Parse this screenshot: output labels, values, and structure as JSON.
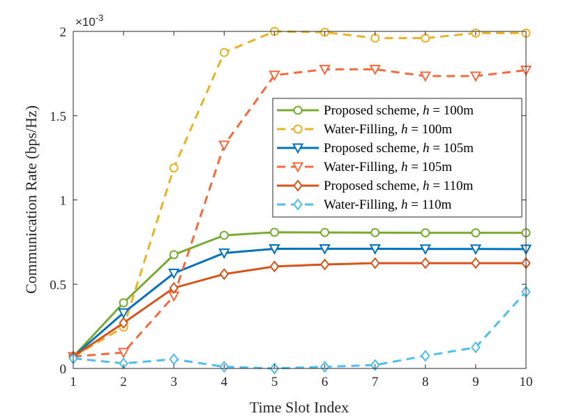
{
  "chart_data": {
    "type": "line",
    "title": "",
    "xlabel": "Time Slot Index",
    "ylabel": "Communication Rate (bps/Hz)",
    "x": [
      1,
      2,
      3,
      4,
      5,
      6,
      7,
      8,
      9,
      10
    ],
    "xlim": [
      1,
      10
    ],
    "ylim": [
      0,
      2
    ],
    "xticks": [
      "1",
      "2",
      "3",
      "4",
      "5",
      "6",
      "7",
      "8",
      "9",
      "10"
    ],
    "yticks": [
      {
        "value": 0,
        "label": "0"
      },
      {
        "value": 0.5,
        "label": "0.5"
      },
      {
        "value": 1,
        "label": "1"
      },
      {
        "value": 1.5,
        "label": "1.5"
      },
      {
        "value": 2,
        "label": "2"
      }
    ],
    "y_multiplier": {
      "base": "×10",
      "exponent": "-3"
    },
    "grid": false,
    "legend_position": "right",
    "series": [
      {
        "legend_prefix": "Proposed scheme, ",
        "legend_var": "h",
        "legend_eq": " = 100m",
        "color": "#77ac30",
        "dashed": false,
        "marker": "circle",
        "values": [
          0.07,
          0.39,
          0.675,
          0.79,
          0.808,
          0.807,
          0.806,
          0.805,
          0.805,
          0.805
        ]
      },
      {
        "legend_prefix": "Water-Filling, ",
        "legend_var": "h",
        "legend_eq": " = 100m",
        "color": "#edb120",
        "dashed": true,
        "marker": "circle",
        "values": [
          0.07,
          0.245,
          1.19,
          1.875,
          2.0,
          1.995,
          1.96,
          1.96,
          1.99,
          1.99
        ]
      },
      {
        "legend_prefix": "Proposed scheme, ",
        "legend_var": "h",
        "legend_eq": " = 105m",
        "color": "#0072bd",
        "dashed": false,
        "marker": "triangle-down",
        "values": [
          0.07,
          0.33,
          0.565,
          0.685,
          0.71,
          0.71,
          0.71,
          0.709,
          0.709,
          0.708
        ]
      },
      {
        "legend_prefix": "Water-Filling, ",
        "legend_var": "h",
        "legend_eq": " = 105m",
        "color": "#f7693b",
        "dashed": true,
        "marker": "triangle-down",
        "values": [
          0.07,
          0.095,
          0.43,
          1.325,
          1.74,
          1.775,
          1.775,
          1.735,
          1.735,
          1.77
        ]
      },
      {
        "legend_prefix": "Proposed scheme, ",
        "legend_var": "h",
        "legend_eq": " = 110m",
        "color": "#d95319",
        "dashed": false,
        "marker": "diamond",
        "values": [
          0.07,
          0.27,
          0.478,
          0.56,
          0.605,
          0.617,
          0.625,
          0.625,
          0.625,
          0.625
        ]
      },
      {
        "legend_prefix": "Water-Filling, ",
        "legend_var": "h",
        "legend_eq": " = 110m",
        "color": "#4dbeee",
        "dashed": true,
        "marker": "diamond",
        "values": [
          0.06,
          0.03,
          0.055,
          0.01,
          0.0,
          0.01,
          0.02,
          0.075,
          0.125,
          0.455
        ]
      }
    ]
  }
}
